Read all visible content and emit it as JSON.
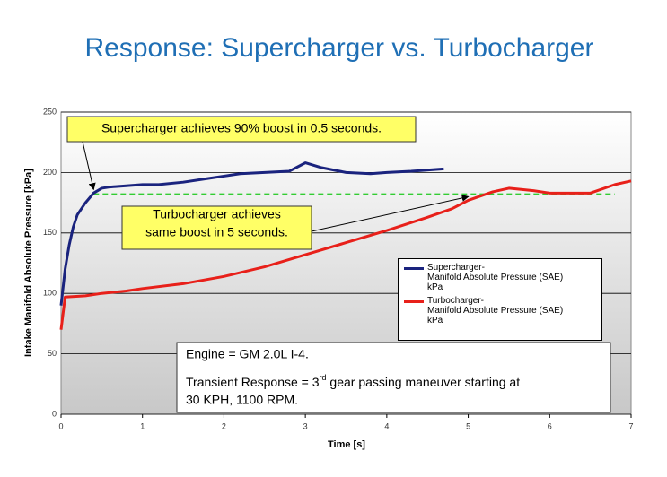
{
  "chart_data": {
    "type": "line",
    "title": "Response: Supercharger vs. Turbocharger",
    "title_color": "#1f6fb5",
    "x_label": "Time [s]",
    "y_label": "Intake Manifold Absolute Pressure [kPa]",
    "xlim": [
      0,
      7
    ],
    "xticks": [
      0,
      1,
      2,
      3,
      4,
      5,
      6,
      7
    ],
    "ylim": [
      0,
      250
    ],
    "yticks": [
      0,
      50,
      100,
      150,
      200,
      250
    ],
    "grid": true,
    "series": [
      {
        "name": "Supercharger-\nManifold Absolute Pressure (SAE)\nkPa",
        "color": "#1a237e",
        "x": [
          0,
          0.05,
          0.1,
          0.15,
          0.2,
          0.3,
          0.4,
          0.5,
          0.6,
          0.8,
          1,
          1.2,
          1.5,
          1.8,
          2,
          2.2,
          2.5,
          2.8,
          3,
          3.2,
          3.5,
          3.8,
          4,
          4.3,
          4.7
        ],
        "values": [
          90,
          120,
          140,
          155,
          165,
          175,
          183,
          187,
          188,
          189,
          190,
          190,
          192,
          195,
          197,
          199,
          200,
          201,
          208,
          204,
          200,
          199,
          200,
          201,
          203
        ]
      },
      {
        "name": "Turbocharger-\nManifold Absolute Pressure (SAE)\nkPa",
        "color": "#e8201a",
        "x": [
          0,
          0.05,
          0.3,
          0.5,
          0.8,
          1,
          1.5,
          2,
          2.5,
          3,
          3.5,
          4,
          4.5,
          4.8,
          5,
          5.3,
          5.5,
          5.8,
          6,
          6.5,
          6.8,
          7
        ],
        "values": [
          70,
          97,
          98,
          100,
          102,
          104,
          108,
          114,
          122,
          132,
          142,
          152,
          163,
          170,
          177,
          184,
          187,
          185,
          183,
          183,
          190,
          193
        ]
      }
    ],
    "reference_line": {
      "value": 182,
      "color": "#33cc33",
      "x_range": [
        0.4,
        6.8
      ]
    },
    "annotations": [
      {
        "lines": [
          "Supercharger achieves 90% boost in 0.5 seconds."
        ],
        "arrow_to": [
          0.4,
          186
        ]
      },
      {
        "lines": [
          "Turbocharger achieves",
          "same boost in 5 seconds."
        ],
        "arrow_to": [
          5,
          180
        ]
      }
    ],
    "note": {
      "line1": "Engine = GM 2.0L I-4.",
      "line2a": "Transient Response = 3",
      "line2sup": "rd",
      "line2b": " gear passing maneuver starting at",
      "line3": "30 KPH, 1100 RPM."
    }
  }
}
